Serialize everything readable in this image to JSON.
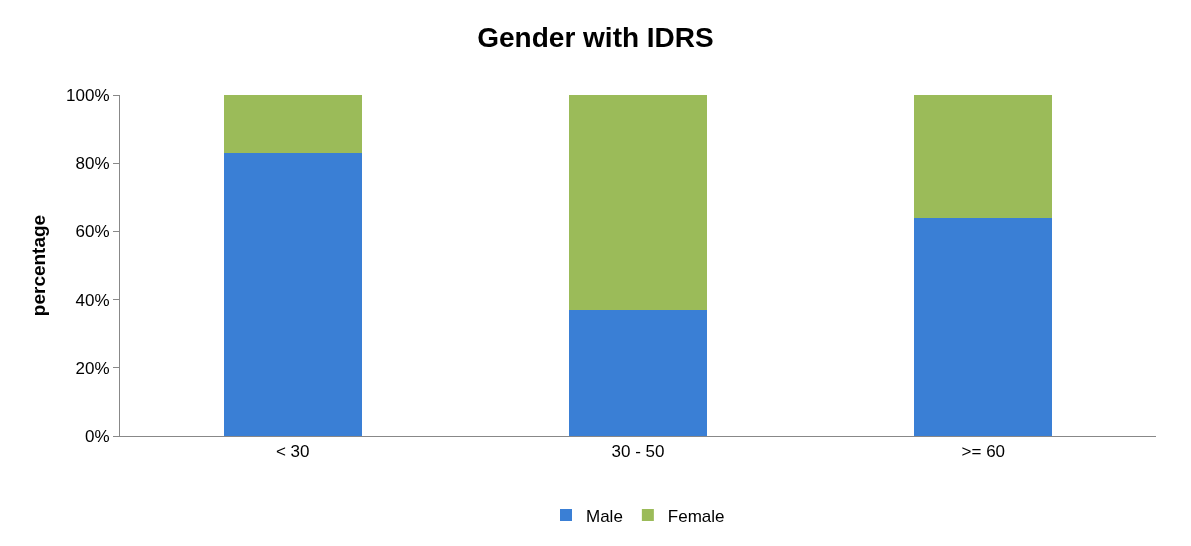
{
  "chart_data": {
    "type": "bar",
    "title": "Gender with IDRS",
    "ylabel": "percentage",
    "categories": [
      "< 30",
      "30 - 50",
      ">= 60"
    ],
    "series": [
      {
        "name": "Male",
        "color": "#3a7fd5",
        "values": [
          83,
          37,
          64
        ]
      },
      {
        "name": "Female",
        "color": "#9bbb59",
        "values": [
          17,
          63,
          36
        ]
      }
    ],
    "stacked": true,
    "ylim": [
      0,
      100
    ],
    "yticks": [
      {
        "value": 0,
        "label": "0%"
      },
      {
        "value": 20,
        "label": "20%"
      },
      {
        "value": 40,
        "label": "40%"
      },
      {
        "value": 60,
        "label": "60%"
      },
      {
        "value": 80,
        "label": "80%"
      },
      {
        "value": 100,
        "label": "100%"
      }
    ],
    "legend": "bottom"
  }
}
